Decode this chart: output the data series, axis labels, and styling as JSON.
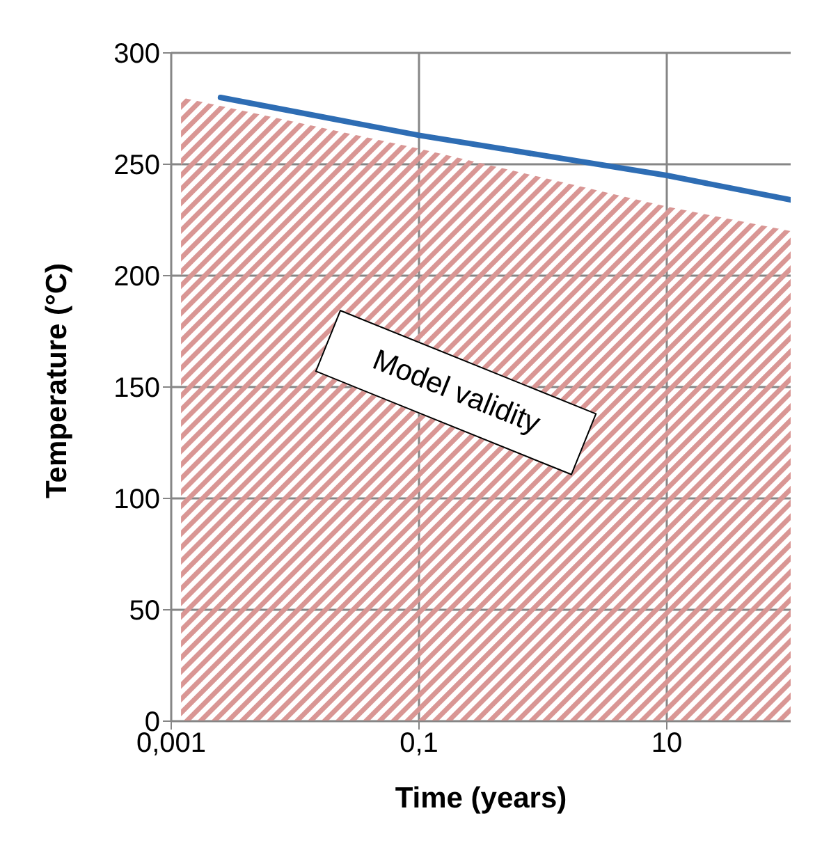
{
  "chart_data": {
    "type": "area",
    "xlabel": "Time (years)",
    "ylabel": "Temperature (°C)",
    "annotations": [
      "Model validity"
    ],
    "log": "x",
    "grid": true,
    "legend": false,
    "xlim": [
      0.001,
      100
    ],
    "xticks": [
      {
        "value": 0.001,
        "label": "0,001"
      },
      {
        "value": 0.1,
        "label": "0,1"
      },
      {
        "value": 10,
        "label": "10"
      }
    ],
    "ylim": [
      0,
      300
    ],
    "yticks": [
      0,
      50,
      100,
      150,
      200,
      250,
      300
    ],
    "series": [
      {
        "color": "#d99694",
        "x": [
          0.0012,
          0.1,
          10,
          100
        ],
        "values": [
          280,
          257,
          231,
          220
        ]
      },
      {
        "type": "line",
        "color": "#2e6db4",
        "x": [
          0.0025,
          0.1,
          10,
          100
        ],
        "values": [
          280,
          263,
          245,
          234
        ]
      }
    ]
  }
}
